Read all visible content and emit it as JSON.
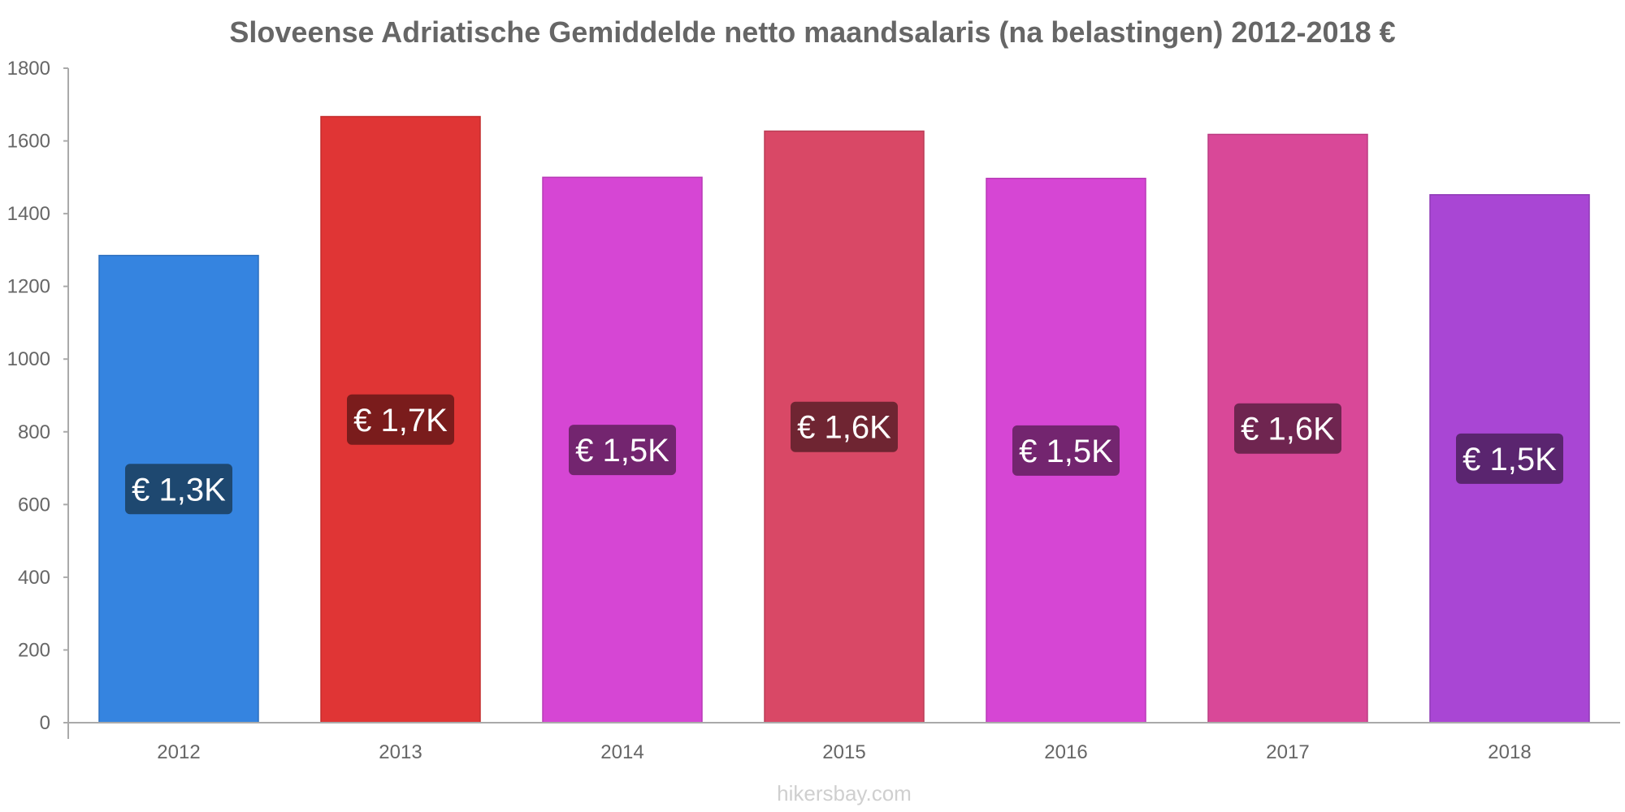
{
  "chart_data": {
    "type": "bar",
    "title": "Sloveense Adriatische Gemiddelde netto maandsalaris (na belastingen) 2012-2018 €",
    "xlabel": "",
    "ylabel": "",
    "categories": [
      "2012",
      "2013",
      "2014",
      "2015",
      "2016",
      "2017",
      "2018"
    ],
    "values": [
      1285,
      1667,
      1500,
      1627,
      1497,
      1618,
      1452
    ],
    "data_labels": [
      "€ 1,3K",
      "€ 1,7K",
      "€ 1,5K",
      "€ 1,6K",
      "€ 1,5K",
      "€ 1,6K",
      "€ 1,5K"
    ],
    "ylim": [
      0,
      1800
    ],
    "yticks": [
      0,
      200,
      400,
      600,
      800,
      1000,
      1200,
      1400,
      1600,
      1800
    ],
    "grid": false,
    "legend": "none",
    "bar_colors": [
      "#3584e0",
      "#e03535",
      "#d646d4",
      "#d94866",
      "#d646d4",
      "#d94898",
      "#a946d4"
    ],
    "bar_stroke_colors": [
      "#2c6fbd",
      "#c42d2d",
      "#b83ab6",
      "#bb3c56",
      "#b83ab6",
      "#bb3c82",
      "#8f3ab6"
    ],
    "label_bg_colors": [
      "#1e4870",
      "#7a1c1c",
      "#73256f",
      "#6f2532",
      "#73256f",
      "#6f2550",
      "#5a256f"
    ]
  },
  "watermark": "hikersbay.com",
  "colors": {
    "title": "#666666",
    "axis": "#aaaaaa",
    "tick_text": "#666666"
  }
}
